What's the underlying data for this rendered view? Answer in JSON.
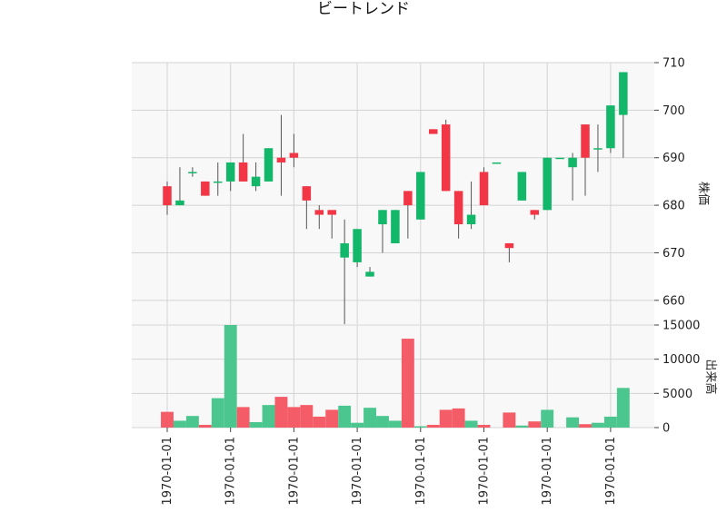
{
  "chart_data": [
    {
      "type": "candlestick",
      "title": "ビートレンド",
      "ylabel": "株価",
      "ylim": [
        655,
        710
      ],
      "yticks": [
        660,
        670,
        680,
        690,
        700,
        710
      ],
      "xtick_labels": [
        "1970-01-01",
        "1970-01-01",
        "1970-01-01",
        "1970-01-01",
        "1970-01-01",
        "1970-01-01",
        "1970-01-01",
        "1970-01-01"
      ],
      "xtick_candle_index": [
        0,
        5,
        10,
        15,
        20,
        25,
        30,
        35
      ],
      "up_color": "#12b76a",
      "down_color": "#f23645",
      "wick_color": "#555555",
      "candles": [
        {
          "open": 684,
          "high": 685,
          "low": 678,
          "close": 680
        },
        {
          "open": 680,
          "high": 688,
          "low": 680,
          "close": 681
        },
        {
          "open": 687,
          "high": 688,
          "low": 686,
          "close": 687
        },
        {
          "open": 685,
          "high": 685,
          "low": 682,
          "close": 682
        },
        {
          "open": 685,
          "high": 689,
          "low": 682,
          "close": 685
        },
        {
          "open": 685,
          "high": 689,
          "low": 683,
          "close": 689
        },
        {
          "open": 689,
          "high": 695,
          "low": 685,
          "close": 685
        },
        {
          "open": 684,
          "high": 689,
          "low": 683,
          "close": 686
        },
        {
          "open": 685,
          "high": 692,
          "low": 685,
          "close": 692
        },
        {
          "open": 690,
          "high": 699,
          "low": 682,
          "close": 689
        },
        {
          "open": 691,
          "high": 695,
          "low": 688,
          "close": 690
        },
        {
          "open": 684,
          "high": 684,
          "low": 675,
          "close": 681
        },
        {
          "open": 679,
          "high": 680,
          "low": 675,
          "close": 678
        },
        {
          "open": 679,
          "high": 679,
          "low": 673,
          "close": 678
        },
        {
          "open": 669,
          "high": 677,
          "low": 655,
          "close": 672
        },
        {
          "open": 668,
          "high": 675,
          "low": 667,
          "close": 675
        },
        {
          "open": 665,
          "high": 667,
          "low": 665,
          "close": 666
        },
        {
          "open": 676,
          "high": 679,
          "low": 670,
          "close": 679
        },
        {
          "open": 672,
          "high": 679,
          "low": 672,
          "close": 679
        },
        {
          "open": 683,
          "high": 683,
          "low": 673,
          "close": 680
        },
        {
          "open": 677,
          "high": 687,
          "low": 677,
          "close": 687
        },
        {
          "open": 696,
          "high": 696,
          "low": 695,
          "close": 695
        },
        {
          "open": 697,
          "high": 698,
          "low": 683,
          "close": 683
        },
        {
          "open": 683,
          "high": 683,
          "low": 673,
          "close": 676
        },
        {
          "open": 676,
          "high": 685,
          "low": 675,
          "close": 678
        },
        {
          "open": 687,
          "high": 688,
          "low": 680,
          "close": 680
        },
        {
          "open": 689,
          "high": 689,
          "low": 689,
          "close": 689
        },
        {
          "open": 672,
          "high": 672,
          "low": 668,
          "close": 671
        },
        {
          "open": 681,
          "high": 687,
          "low": 681,
          "close": 687
        },
        {
          "open": 679,
          "high": 679,
          "low": 677,
          "close": 678
        },
        {
          "open": 679,
          "high": 690,
          "low": 679,
          "close": 690
        },
        {
          "open": 690,
          "high": 690,
          "low": 690,
          "close": 690
        },
        {
          "open": 688,
          "high": 691,
          "low": 681,
          "close": 690
        },
        {
          "open": 697,
          "high": 697,
          "low": 682,
          "close": 690
        },
        {
          "open": 692,
          "high": 697,
          "low": 687,
          "close": 692
        },
        {
          "open": 692,
          "high": 701,
          "low": 691,
          "close": 701
        },
        {
          "open": 699,
          "high": 708,
          "low": 690,
          "close": 708
        }
      ]
    },
    {
      "type": "bar",
      "ylabel": "出来高",
      "ylim": [
        0,
        15000
      ],
      "yticks": [
        0,
        5000,
        10000,
        15000
      ],
      "ytick_labels": [
        "0",
        "5000",
        "10000",
        "15000"
      ],
      "up_color": "#4cc68f",
      "down_color": "#f45c67",
      "values": [
        2300,
        1000,
        1700,
        400,
        4300,
        15000,
        3000,
        800,
        3300,
        4500,
        3000,
        3300,
        1600,
        2600,
        3200,
        700,
        2900,
        1700,
        1000,
        13000,
        200,
        400,
        2600,
        2800,
        1000,
        400,
        0,
        2200,
        300,
        900,
        2600,
        0,
        1500,
        500,
        700,
        1600,
        5800
      ]
    }
  ]
}
